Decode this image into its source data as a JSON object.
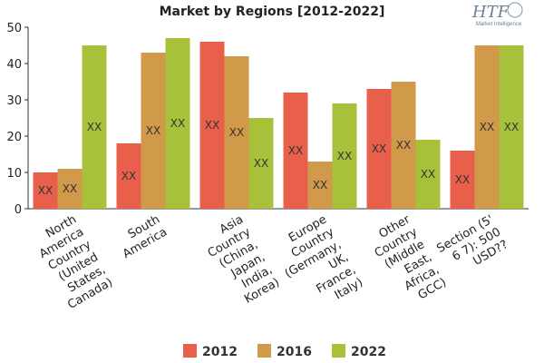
{
  "logo": {
    "mark": "HTF",
    "tagline": "Market Intelligence"
  },
  "colors": {
    "2012": "#e8604c",
    "2016": "#d09a4a",
    "2022": "#a8c13a"
  },
  "chart_data": {
    "type": "bar",
    "title": "Market by Regions [2012-2022]",
    "xlabel": "",
    "ylabel": "",
    "ylim": [
      0,
      50
    ],
    "yticks": [
      0,
      10,
      20,
      30,
      40,
      50
    ],
    "grid": false,
    "legend_position": "bottom",
    "categories": [
      [
        "North",
        "America",
        "Country",
        "(United",
        "States,",
        "Canada)"
      ],
      [
        "South",
        "America"
      ],
      [
        "Asia",
        "Country",
        "(China,",
        "Japan,",
        "India,",
        "Korea)"
      ],
      [
        "Europe",
        "Country",
        "(Germany,",
        "UK,",
        "France,",
        "Italy)"
      ],
      [
        "Other",
        "Country",
        "(Middle",
        "East,",
        "Africa,",
        "GCC)"
      ],
      [
        "Section (5'",
        "6 7): 500",
        "USD??"
      ]
    ],
    "series": [
      {
        "name": "2012",
        "values": [
          10,
          18,
          46,
          32,
          33,
          16
        ],
        "labels": [
          "XX",
          "XX",
          "XX",
          "XX",
          "XX",
          "XX"
        ]
      },
      {
        "name": "2016",
        "values": [
          11,
          43,
          42,
          13,
          35,
          45
        ],
        "labels": [
          "XX",
          "XX",
          "XX",
          "XX",
          "XX",
          "XX"
        ]
      },
      {
        "name": "2022",
        "values": [
          45,
          47,
          25,
          29,
          19,
          45
        ],
        "labels": [
          "XX",
          "XX",
          "XX",
          "XX",
          "XX",
          "XX"
        ]
      }
    ]
  }
}
